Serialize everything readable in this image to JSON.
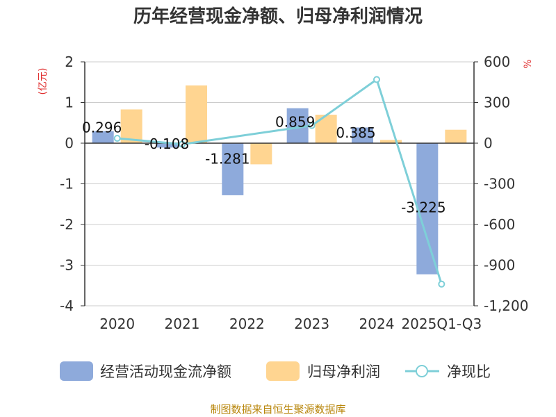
{
  "chart_data": {
    "type": "bar+line",
    "title": "历年经营现金净额、归母净利润情况",
    "categories": [
      "2020",
      "2021",
      "2022",
      "2023",
      "2024",
      "2025Q1-Q3"
    ],
    "series": [
      {
        "name": "经营活动现金流净额",
        "type": "bar",
        "axis": "left",
        "values": [
          0.296,
          -0.108,
          -1.281,
          0.859,
          0.385,
          -3.225
        ],
        "labels": [
          "0.296",
          "-0.108",
          "-1.281",
          "0.859",
          "0.385",
          "-3.225"
        ]
      },
      {
        "name": "归母净利润",
        "type": "bar",
        "axis": "left",
        "values": [
          0.83,
          1.42,
          -0.52,
          0.7,
          0.08,
          0.33
        ]
      },
      {
        "name": "净现比",
        "type": "line",
        "axis": "right",
        "values": [
          36,
          -8,
          null,
          130,
          470,
          -1040
        ]
      }
    ],
    "ylabel_left": "(亿元)",
    "ylabel_right": "%",
    "ylim_left": [
      -4,
      2
    ],
    "ylim_right": [
      -1200,
      600
    ],
    "yticks_left": [
      "2",
      "1",
      "0",
      "-1",
      "-2",
      "-3",
      "-4"
    ],
    "yticks_right": [
      "600",
      "300",
      "0",
      "-300",
      "-600",
      "-900",
      "-1,200"
    ],
    "colors": {
      "cash": "#8eaadb",
      "profit": "#ffd591",
      "ratio": "#7ecfd8"
    },
    "grid": true,
    "legend": "bottom",
    "source": "制图数据来自恒生聚源数据库"
  }
}
